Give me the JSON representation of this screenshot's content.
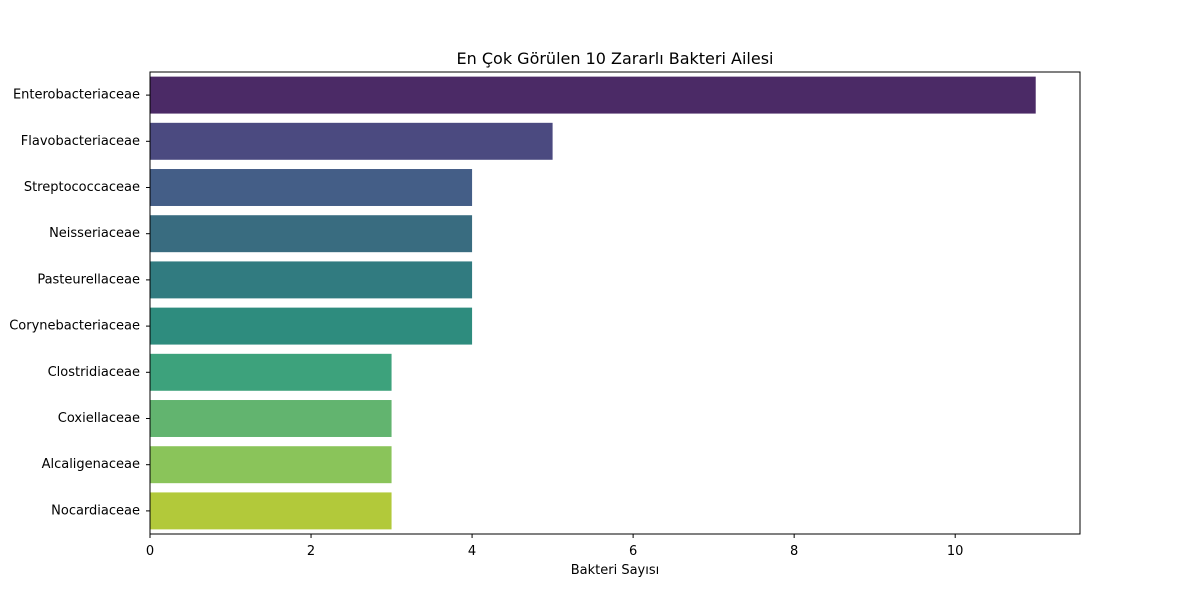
{
  "chart_data": {
    "type": "bar",
    "orientation": "horizontal",
    "title": "En Çok Görülen 10 Zararlı Bakteri Ailesi",
    "xlabel": "Bakteri Sayısı",
    "ylabel": "",
    "xlim": [
      0,
      11.55
    ],
    "xticks": [
      0,
      2,
      4,
      6,
      8,
      10
    ],
    "grid": false,
    "categories": [
      "Enterobacteriaceae",
      "Flavobacteriaceae",
      "Streptococcaceae",
      "Neisseriaceae",
      "Pasteurellaceae",
      "Corynebacteriaceae",
      "Clostridiaceae",
      "Coxiellaceae",
      "Alcaligenaceae",
      "Nocardiaceae"
    ],
    "values": [
      11,
      5,
      4,
      4,
      4,
      4,
      3,
      3,
      3,
      3
    ],
    "colors": [
      "#4b2a66",
      "#4b4a80",
      "#445e87",
      "#396c80",
      "#317b80",
      "#2e8c7e",
      "#3da27c",
      "#62b46f",
      "#8ac45a",
      "#b2c93a"
    ]
  }
}
